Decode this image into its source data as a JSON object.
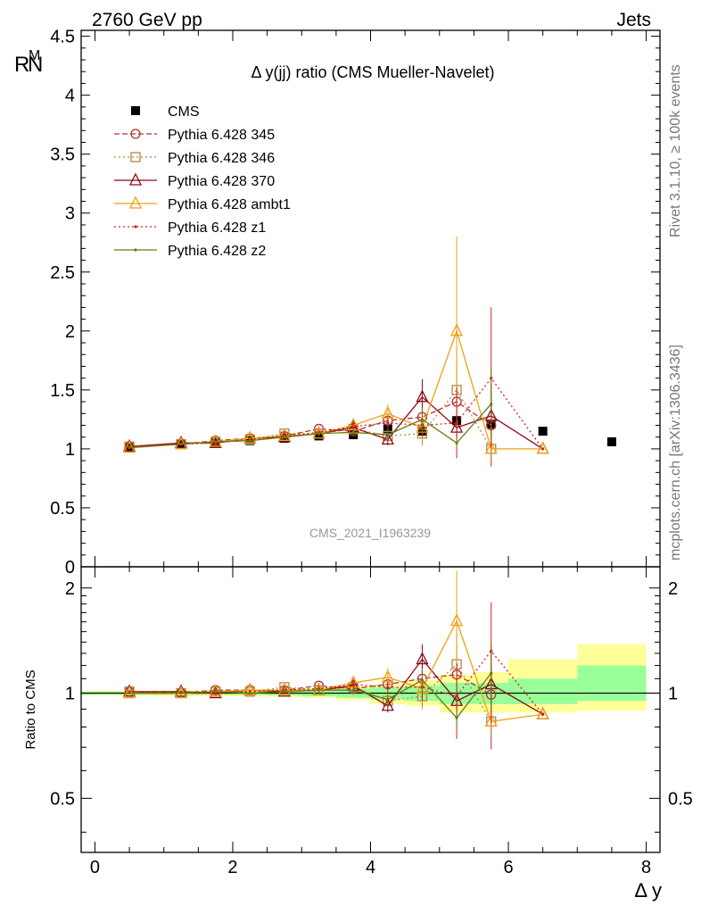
{
  "header": {
    "left": "2760 GeV pp",
    "right": "Jets",
    "side_top": "Rivet 3.1.10, ≥ 100k events",
    "side_bottom": "mcplots.cern.ch [arXiv:1306.3436]",
    "watermark": "CMS_2021_I1963239"
  },
  "chart_data": [
    {
      "type": "scatter",
      "title": "Δ y(jj) ratio (CMS Mueller-Navelet)",
      "xlabel": "Δ y",
      "ylabel": "R^M_N",
      "xlim": [
        -0.2,
        8.2
      ],
      "ylim": [
        0,
        4.55
      ],
      "yticks": [
        0,
        0.5,
        1,
        1.5,
        2,
        2.5,
        3,
        3.5,
        4,
        4.5
      ],
      "ytick_labels": [
        "0",
        "0.5",
        "1",
        "1.5",
        "2",
        "2.5",
        "3",
        "3.5",
        "4",
        "4.5"
      ],
      "legend_position": "top-left",
      "x": [
        0.5,
        1.25,
        1.75,
        2.25,
        2.75,
        3.25,
        3.75,
        4.25,
        4.75,
        5.25,
        5.75,
        6.5,
        7.5
      ],
      "series": [
        {
          "name": "CMS",
          "color": "#000000",
          "marker": "square",
          "style": "none",
          "x": [
            0.5,
            1.25,
            1.75,
            2.25,
            2.75,
            3.25,
            3.75,
            4.25,
            4.75,
            5.25,
            5.75,
            6.5,
            7.5
          ],
          "values": [
            1.01,
            1.04,
            1.05,
            1.07,
            1.09,
            1.11,
            1.12,
            1.17,
            1.15,
            1.24,
            1.21,
            1.15,
            1.06
          ],
          "errors": [
            0,
            0,
            0,
            0,
            0,
            0,
            0,
            0,
            0,
            0,
            0,
            0,
            0
          ]
        },
        {
          "name": "Pythia 6.428 345",
          "color": "#b03030",
          "marker": "circle",
          "style": "dashed",
          "x": [
            0.5,
            1.25,
            1.75,
            2.25,
            2.75,
            3.25,
            3.75,
            4.25,
            4.75,
            5.25,
            5.75
          ],
          "values": [
            1.02,
            1.04,
            1.07,
            1.09,
            1.11,
            1.17,
            1.15,
            1.24,
            1.27,
            1.4,
            1.2
          ],
          "errors": [
            0.01,
            0.01,
            0.01,
            0.01,
            0.01,
            0.02,
            0.03,
            0.05,
            0.12,
            0.3,
            0.35
          ]
        },
        {
          "name": "Pythia 6.428 346",
          "color": "#b08840",
          "marker": "square-open",
          "style": "dotted",
          "x": [
            0.5,
            1.25,
            1.75,
            2.25,
            2.75,
            3.25,
            3.75,
            4.25,
            4.75,
            5.25,
            5.75
          ],
          "values": [
            1.02,
            1.04,
            1.06,
            1.08,
            1.13,
            1.13,
            1.17,
            1.11,
            1.13,
            1.5,
            1.0
          ],
          "errors": [
            0.01,
            0.01,
            0.01,
            0.01,
            0.01,
            0.02,
            0.03,
            0.05,
            0.1,
            0.35,
            0.1
          ]
        },
        {
          "name": "Pythia 6.428 370",
          "color": "#8b0a1a",
          "marker": "triangle-open",
          "style": "solid",
          "x": [
            0.5,
            1.25,
            1.75,
            2.25,
            2.75,
            3.25,
            3.75,
            4.25,
            4.75,
            5.25,
            5.75,
            6.5
          ],
          "values": [
            1.02,
            1.05,
            1.05,
            1.09,
            1.1,
            1.13,
            1.18,
            1.08,
            1.44,
            1.18,
            1.28,
            1.0
          ],
          "errors": [
            0.01,
            0.01,
            0.01,
            0.01,
            0.01,
            0.02,
            0.03,
            0.05,
            0.15,
            0.1,
            0.15,
            0.01
          ]
        },
        {
          "name": "Pythia 6.428 ambt1",
          "color": "#f0a010",
          "marker": "triangle-open",
          "style": "solid",
          "x": [
            0.5,
            1.25,
            1.75,
            2.25,
            2.75,
            3.25,
            3.75,
            4.25,
            4.75,
            5.25,
            5.75,
            6.5
          ],
          "values": [
            1.01,
            1.04,
            1.06,
            1.09,
            1.11,
            1.13,
            1.2,
            1.3,
            1.18,
            2.0,
            1.0,
            1.0
          ],
          "errors": [
            0.01,
            0.01,
            0.01,
            0.01,
            0.01,
            0.02,
            0.03,
            0.08,
            0.1,
            0.8,
            0.01,
            0.01
          ]
        },
        {
          "name": "Pythia 6.428 z1",
          "color": "#d02020",
          "marker": "dot",
          "style": "dotted",
          "x": [
            0.5,
            1.25,
            1.75,
            2.25,
            2.75,
            3.25,
            3.75,
            4.25,
            4.75,
            5.25,
            5.75,
            6.5
          ],
          "values": [
            1.02,
            1.04,
            1.05,
            1.08,
            1.11,
            1.14,
            1.19,
            1.22,
            1.2,
            1.22,
            1.6,
            1.0
          ],
          "errors": [
            0.01,
            0.01,
            0.01,
            0.01,
            0.01,
            0.02,
            0.03,
            0.05,
            0.1,
            0.3,
            0.6,
            0.01
          ]
        },
        {
          "name": "Pythia 6.428 z2",
          "color": "#6b7a10",
          "marker": "dot",
          "style": "solid",
          "x": [
            0.5,
            1.25,
            1.75,
            2.25,
            2.75,
            3.25,
            3.75,
            4.25,
            4.75,
            5.25,
            5.75
          ],
          "values": [
            1.01,
            1.04,
            1.06,
            1.07,
            1.1,
            1.13,
            1.14,
            1.12,
            1.25,
            1.05,
            1.38
          ],
          "errors": [
            0.01,
            0.01,
            0.01,
            0.01,
            0.01,
            0.02,
            0.03,
            0.05,
            0.1,
            0.05,
            0.3
          ]
        }
      ]
    },
    {
      "type": "scatter",
      "ylabel": "Ratio to CMS",
      "xlabel": "Δ y",
      "xlim": [
        -0.2,
        8.2
      ],
      "ylim": [
        0.35,
        2.3
      ],
      "log_y": true,
      "yticks": [
        0.5,
        1,
        2
      ],
      "ytick_labels": [
        "0.5",
        "1",
        "2"
      ],
      "xticks": [
        0,
        2,
        4,
        6,
        8
      ],
      "xtick_labels": [
        "0",
        "2",
        "4",
        "6",
        "8"
      ],
      "bands": [
        {
          "x0": -0.2,
          "x1": 0.8,
          "inner": [
            0.99,
            1.01
          ],
          "outer": [
            0.985,
            1.015
          ]
        },
        {
          "x0": 0.8,
          "x1": 1.5,
          "inner": [
            0.99,
            1.01
          ],
          "outer": [
            0.98,
            1.02
          ]
        },
        {
          "x0": 1.5,
          "x1": 2.0,
          "inner": [
            0.99,
            1.01
          ],
          "outer": [
            0.98,
            1.02
          ]
        },
        {
          "x0": 2.0,
          "x1": 2.5,
          "inner": [
            0.99,
            1.01
          ],
          "outer": [
            0.98,
            1.02
          ]
        },
        {
          "x0": 2.5,
          "x1": 3.0,
          "inner": [
            0.985,
            1.015
          ],
          "outer": [
            0.975,
            1.025
          ]
        },
        {
          "x0": 3.0,
          "x1": 3.5,
          "inner": [
            0.98,
            1.02
          ],
          "outer": [
            0.97,
            1.03
          ]
        },
        {
          "x0": 3.5,
          "x1": 4.0,
          "inner": [
            0.97,
            1.03
          ],
          "outer": [
            0.955,
            1.045
          ]
        },
        {
          "x0": 4.0,
          "x1": 4.5,
          "inner": [
            0.96,
            1.04
          ],
          "outer": [
            0.93,
            1.06
          ]
        },
        {
          "x0": 4.5,
          "x1": 5.0,
          "inner": [
            0.95,
            1.05
          ],
          "outer": [
            0.92,
            1.09
          ]
        },
        {
          "x0": 5.0,
          "x1": 5.5,
          "inner": [
            0.93,
            1.07
          ],
          "outer": [
            0.88,
            1.13
          ]
        },
        {
          "x0": 5.5,
          "x1": 6.0,
          "inner": [
            0.93,
            1.07
          ],
          "outer": [
            0.88,
            1.15
          ]
        },
        {
          "x0": 6.0,
          "x1": 7.0,
          "inner": [
            0.93,
            1.1
          ],
          "outer": [
            0.88,
            1.25
          ]
        },
        {
          "x0": 7.0,
          "x1": 8.0,
          "inner": [
            0.95,
            1.2
          ],
          "outer": [
            0.89,
            1.38
          ]
        }
      ],
      "series": [
        {
          "name": "Pythia 6.428 345",
          "x": [
            0.5,
            1.25,
            1.75,
            2.25,
            2.75,
            3.25,
            3.75,
            4.25,
            4.75,
            5.25,
            5.75
          ],
          "values": [
            1.01,
            1.0,
            1.02,
            1.02,
            1.02,
            1.05,
            1.03,
            1.06,
            1.1,
            1.13,
            0.99
          ],
          "errors": [
            0.01,
            0.01,
            0.01,
            0.01,
            0.01,
            0.02,
            0.03,
            0.04,
            0.1,
            0.25,
            0.3
          ]
        },
        {
          "name": "Pythia 6.428 346",
          "x": [
            0.5,
            1.25,
            1.75,
            2.25,
            2.75,
            3.25,
            3.75,
            4.25,
            4.75,
            5.25,
            5.75
          ],
          "values": [
            1.01,
            1.0,
            1.01,
            1.01,
            1.04,
            1.02,
            1.04,
            0.95,
            0.98,
            1.21,
            0.83
          ],
          "errors": [
            0.01,
            0.01,
            0.01,
            0.01,
            0.01,
            0.02,
            0.03,
            0.04,
            0.08,
            0.28,
            0.08
          ]
        },
        {
          "name": "Pythia 6.428 370",
          "x": [
            0.5,
            1.25,
            1.75,
            2.25,
            2.75,
            3.25,
            3.75,
            4.25,
            4.75,
            5.25,
            5.75,
            6.5
          ],
          "values": [
            1.01,
            1.01,
            1.0,
            1.02,
            1.01,
            1.02,
            1.05,
            0.92,
            1.25,
            0.95,
            1.06,
            0.87
          ],
          "errors": [
            0.01,
            0.01,
            0.01,
            0.01,
            0.01,
            0.02,
            0.03,
            0.04,
            0.13,
            0.08,
            0.12,
            0.01
          ]
        },
        {
          "name": "Pythia 6.428 ambt1",
          "x": [
            0.5,
            1.25,
            1.75,
            2.25,
            2.75,
            3.25,
            3.75,
            4.25,
            4.75,
            5.25,
            5.75,
            6.5
          ],
          "values": [
            1.0,
            1.0,
            1.01,
            1.02,
            1.02,
            1.02,
            1.07,
            1.11,
            1.03,
            1.61,
            0.83,
            0.87
          ],
          "errors": [
            0.01,
            0.01,
            0.01,
            0.01,
            0.01,
            0.02,
            0.03,
            0.07,
            0.09,
            0.63,
            0.01,
            0.01
          ]
        },
        {
          "name": "Pythia 6.428 z1",
          "x": [
            0.5,
            1.25,
            1.75,
            2.25,
            2.75,
            3.25,
            3.75,
            4.25,
            4.75,
            5.25,
            5.75,
            6.5
          ],
          "values": [
            1.01,
            1.0,
            1.0,
            1.01,
            1.02,
            1.03,
            1.06,
            1.04,
            1.04,
            0.98,
            1.32,
            0.87
          ],
          "errors": [
            0.01,
            0.01,
            0.01,
            0.01,
            0.01,
            0.02,
            0.03,
            0.04,
            0.09,
            0.24,
            0.5,
            0.01
          ]
        },
        {
          "name": "Pythia 6.428 z2",
          "x": [
            0.5,
            1.25,
            1.75,
            2.25,
            2.75,
            3.25,
            3.75,
            4.25,
            4.75,
            5.25,
            5.75
          ],
          "values": [
            1.0,
            1.0,
            1.01,
            1.0,
            1.01,
            1.02,
            1.02,
            0.96,
            1.09,
            0.85,
            1.14
          ],
          "errors": [
            0.01,
            0.01,
            0.01,
            0.01,
            0.01,
            0.02,
            0.03,
            0.04,
            0.09,
            0.04,
            0.25
          ]
        }
      ]
    }
  ]
}
